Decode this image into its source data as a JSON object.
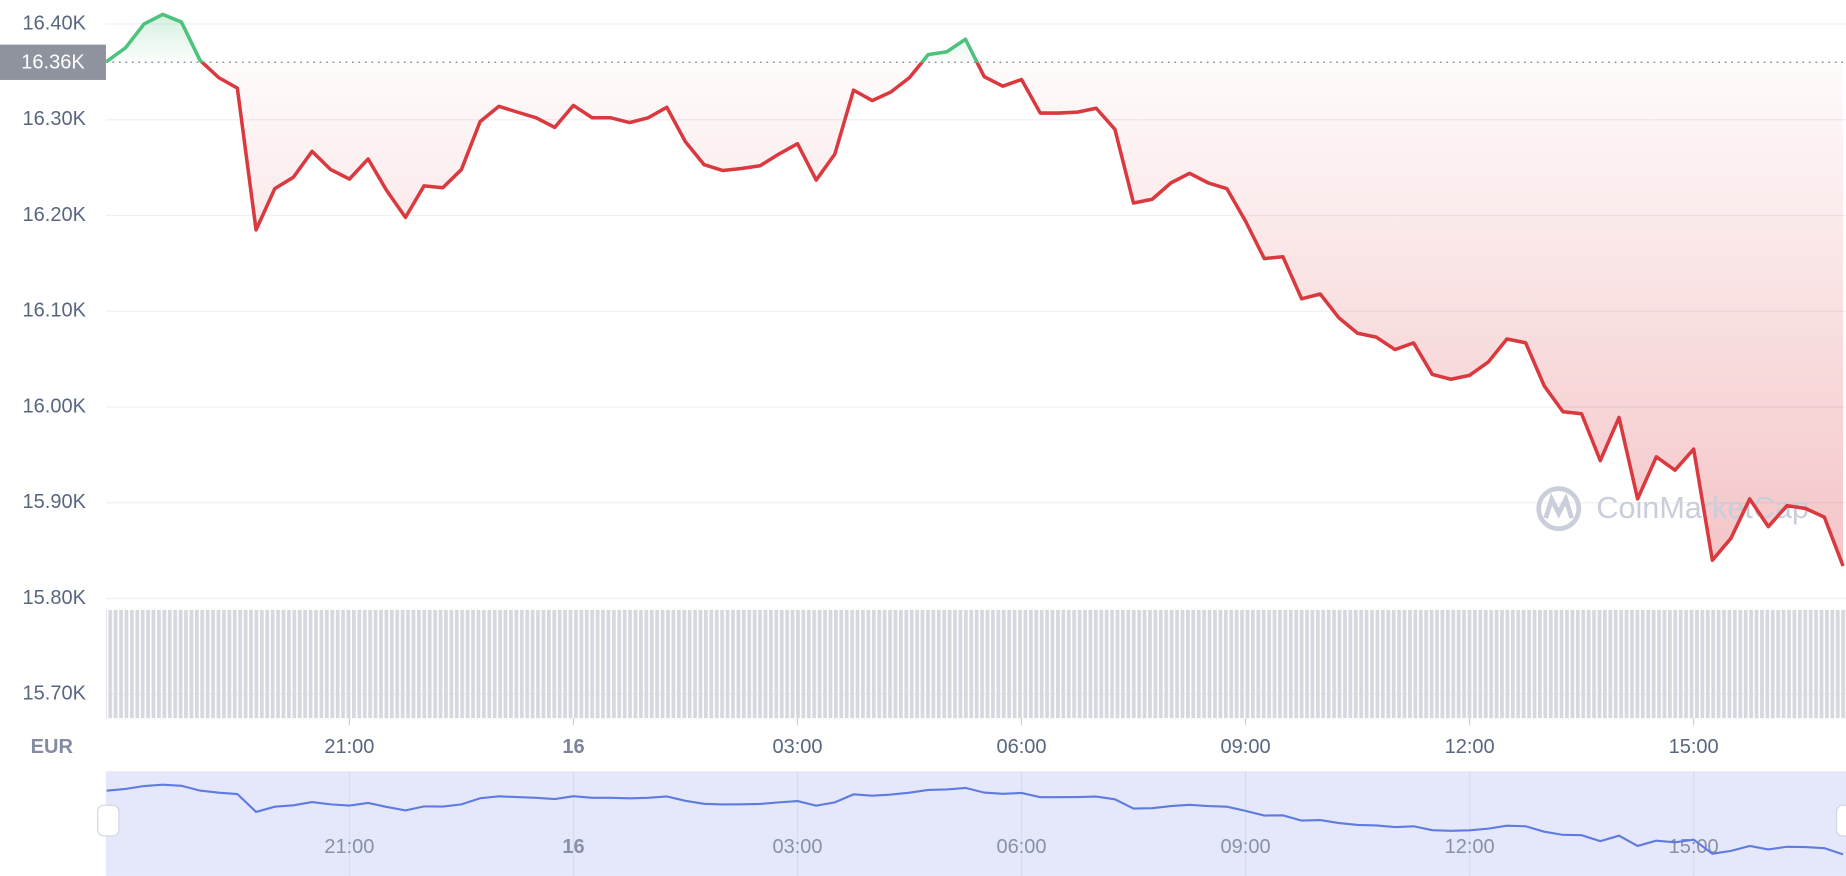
{
  "chart_data": {
    "type": "line",
    "currency": "EUR",
    "watermark": "CoinMarketCap",
    "reference": {
      "value": 16360,
      "label": "16.36K"
    },
    "xlim": [
      17.74,
      41.04
    ],
    "xticks": [
      {
        "value": 21,
        "label": "21:00"
      },
      {
        "value": 24,
        "label": "16"
      },
      {
        "value": 27,
        "label": "03:00"
      },
      {
        "value": 30,
        "label": "06:00"
      },
      {
        "value": 33,
        "label": "09:00"
      },
      {
        "value": 36,
        "label": "12:00"
      },
      {
        "value": 39,
        "label": "15:00"
      }
    ],
    "ylim": [
      15675,
      16425
    ],
    "yticks": [
      {
        "value": 15700,
        "label": "15.70K"
      },
      {
        "value": 15800,
        "label": "15.80K"
      },
      {
        "value": 15900,
        "label": "15.90K"
      },
      {
        "value": 16000,
        "label": "16.00K"
      },
      {
        "value": 16100,
        "label": "16.10K"
      },
      {
        "value": 16200,
        "label": "16.20K"
      },
      {
        "value": 16300,
        "label": "16.30K"
      },
      {
        "value": 16400,
        "label": "16.40K"
      }
    ],
    "grid": true,
    "x": [
      17.75,
      18,
      18.25,
      18.5,
      18.75,
      19,
      19.25,
      19.5,
      19.75,
      20,
      20.25,
      20.5,
      20.75,
      21,
      21.25,
      21.5,
      21.75,
      22,
      22.25,
      22.5,
      22.75,
      23,
      23.25,
      23.5,
      23.75,
      24,
      24.25,
      24.5,
      24.75,
      25,
      25.25,
      25.5,
      25.75,
      26,
      26.25,
      26.5,
      26.75,
      27,
      27.25,
      27.5,
      27.75,
      28,
      28.25,
      28.5,
      28.75,
      29,
      29.25,
      29.5,
      29.75,
      30,
      30.25,
      30.5,
      30.75,
      31,
      31.25,
      31.5,
      31.75,
      32,
      32.25,
      32.5,
      32.75,
      33,
      33.25,
      33.5,
      33.75,
      34,
      34.25,
      34.5,
      34.75,
      35,
      35.25,
      35.5,
      35.75,
      36,
      36.25,
      36.5,
      36.75,
      37,
      37.25,
      37.5,
      37.75,
      38,
      38.25,
      38.5,
      38.75,
      39,
      39.25,
      39.5,
      39.75,
      40,
      40.25,
      40.5,
      40.75,
      41
    ],
    "series": [
      {
        "color": "#d9393f",
        "up_color": "#4cc27c",
        "values": [
          16361,
          16375,
          16400,
          16410,
          16402,
          16362,
          16344,
          16333,
          16185,
          16228,
          16240,
          16267,
          16248,
          16238,
          16259,
          16226,
          16198,
          16231,
          16229,
          16248,
          16298,
          16314,
          16308,
          16302,
          16292,
          16315,
          16302,
          16302,
          16297,
          16302,
          16313,
          16277,
          16253,
          16247,
          16249,
          16252,
          16264,
          16275,
          16237,
          16264,
          16331,
          16320,
          16329,
          16344,
          16368,
          16371,
          16384,
          16345,
          16335,
          16342,
          16307,
          16307,
          16308,
          16312,
          16290,
          16213,
          16217,
          16234,
          16244,
          16234,
          16228,
          16194,
          16155,
          16157,
          16113,
          16118,
          16093,
          16077,
          16073,
          16060,
          16067,
          16034,
          16029,
          16033,
          16047,
          16071,
          16067,
          16022,
          15995,
          15993,
          15944,
          15989,
          15904,
          15948,
          15934,
          15956,
          15840,
          15863,
          15904,
          15875,
          15897,
          15894,
          15885,
          15834
        ]
      }
    ]
  }
}
